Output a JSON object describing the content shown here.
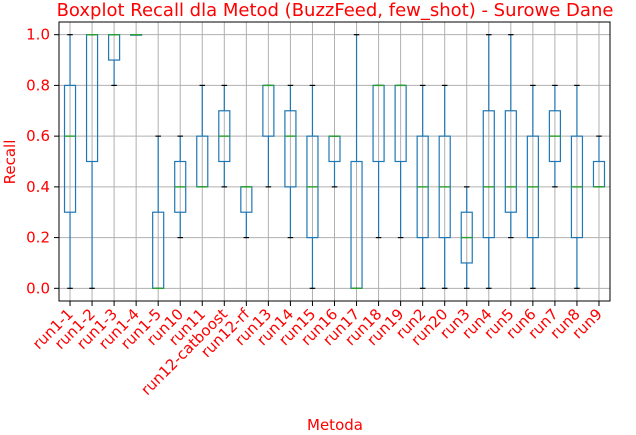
{
  "chart_data": {
    "type": "boxplot",
    "title": "Boxplot Recall dla Metod (BuzzFeed, few_shot) - Surowe Dane",
    "xlabel": "Metoda",
    "ylabel": "Recall",
    "ylim": [
      -0.05,
      1.05
    ],
    "yticks": [
      0.0,
      0.2,
      0.4,
      0.6,
      0.8,
      1.0
    ],
    "ytick_labels": [
      "0.0",
      "0.2",
      "0.4",
      "0.6",
      "0.8",
      "1.0"
    ],
    "grid": true,
    "colors": {
      "box": "#1f77b4",
      "median": "#2ca02c",
      "cap": "#000000",
      "text": "#ff0000",
      "grid": "#b0b0b0"
    },
    "categories": [
      "run1-1",
      "run1-2",
      "run1-3",
      "run1-4",
      "run1-5",
      "run10",
      "run11",
      "run12-catboost",
      "run12-rf",
      "run13",
      "run14",
      "run15",
      "run16",
      "run17",
      "run18",
      "run19",
      "run2",
      "run20",
      "run3",
      "run4",
      "run5",
      "run6",
      "run7",
      "run8",
      "run9"
    ],
    "series": [
      {
        "whislo": 0.0,
        "q1": 0.3,
        "med": 0.6,
        "q3": 0.8,
        "whishi": 1.0
      },
      {
        "whislo": 0.0,
        "q1": 0.5,
        "med": 1.0,
        "q3": 1.0,
        "whishi": 1.0
      },
      {
        "whislo": 0.8,
        "q1": 0.9,
        "med": 1.0,
        "q3": 1.0,
        "whishi": 1.0
      },
      {
        "whislo": 1.0,
        "q1": 1.0,
        "med": 1.0,
        "q3": 1.0,
        "whishi": 1.0
      },
      {
        "whislo": 0.0,
        "q1": 0.0,
        "med": 0.0,
        "q3": 0.3,
        "whishi": 0.6
      },
      {
        "whislo": 0.2,
        "q1": 0.3,
        "med": 0.4,
        "q3": 0.5,
        "whishi": 0.6
      },
      {
        "whislo": 0.4,
        "q1": 0.4,
        "med": 0.4,
        "q3": 0.6,
        "whishi": 0.8
      },
      {
        "whislo": 0.4,
        "q1": 0.5,
        "med": 0.6,
        "q3": 0.7,
        "whishi": 0.8
      },
      {
        "whislo": 0.2,
        "q1": 0.3,
        "med": 0.4,
        "q3": 0.4,
        "whishi": 0.4
      },
      {
        "whislo": 0.4,
        "q1": 0.6,
        "med": 0.8,
        "q3": 0.8,
        "whishi": 0.8
      },
      {
        "whislo": 0.2,
        "q1": 0.4,
        "med": 0.6,
        "q3": 0.7,
        "whishi": 0.8
      },
      {
        "whislo": 0.0,
        "q1": 0.2,
        "med": 0.4,
        "q3": 0.6,
        "whishi": 0.8
      },
      {
        "whislo": 0.4,
        "q1": 0.5,
        "med": 0.6,
        "q3": 0.6,
        "whishi": 0.6
      },
      {
        "whislo": 0.0,
        "q1": 0.0,
        "med": 0.0,
        "q3": 0.5,
        "whishi": 1.0
      },
      {
        "whislo": 0.2,
        "q1": 0.5,
        "med": 0.8,
        "q3": 0.8,
        "whishi": 0.8
      },
      {
        "whislo": 0.2,
        "q1": 0.5,
        "med": 0.8,
        "q3": 0.8,
        "whishi": 0.8
      },
      {
        "whislo": 0.0,
        "q1": 0.2,
        "med": 0.4,
        "q3": 0.6,
        "whishi": 0.8
      },
      {
        "whislo": 0.0,
        "q1": 0.2,
        "med": 0.4,
        "q3": 0.6,
        "whishi": 0.8
      },
      {
        "whislo": 0.0,
        "q1": 0.1,
        "med": 0.2,
        "q3": 0.3,
        "whishi": 0.4
      },
      {
        "whislo": 0.0,
        "q1": 0.2,
        "med": 0.4,
        "q3": 0.7,
        "whishi": 1.0
      },
      {
        "whislo": 0.2,
        "q1": 0.3,
        "med": 0.4,
        "q3": 0.7,
        "whishi": 1.0
      },
      {
        "whislo": 0.0,
        "q1": 0.2,
        "med": 0.4,
        "q3": 0.6,
        "whishi": 0.8
      },
      {
        "whislo": 0.4,
        "q1": 0.5,
        "med": 0.6,
        "q3": 0.7,
        "whishi": 0.8
      },
      {
        "whislo": 0.0,
        "q1": 0.2,
        "med": 0.4,
        "q3": 0.6,
        "whishi": 0.8
      },
      {
        "whislo": 0.4,
        "q1": 0.4,
        "med": 0.4,
        "q3": 0.5,
        "whishi": 0.6
      }
    ]
  }
}
